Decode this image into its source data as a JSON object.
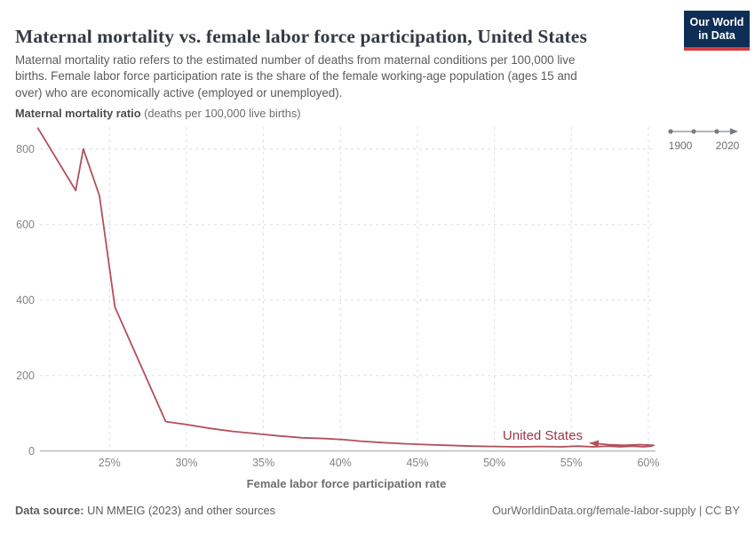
{
  "header": {
    "title": "Maternal mortality vs. female labor force participation, United States",
    "subtitle_lines": [
      "Maternal mortality ratio refers to the estimated number of deaths from maternal conditions per 100,000 live",
      "births. Female labor force participation rate is the share of the female working-age population (ages 15 and",
      "over) who are economically active (employed or unemployed)."
    ],
    "logo": {
      "line1": "Our World",
      "line2": "in Data",
      "bg": "#0f2e55",
      "accent": "#d63c41"
    }
  },
  "timeline": {
    "start_label": "1900",
    "end_label": "2020"
  },
  "chart_data": {
    "type": "line",
    "title": "Maternal mortality vs. female labor force participation, United States",
    "entity_label": "United States",
    "xlabel": "Female labor force participation rate",
    "ylabel_bold": "Maternal mortality ratio",
    "ylabel_unit": " (deaths per 100,000 live births)",
    "x_ticks": [
      25,
      30,
      35,
      40,
      45,
      50,
      55,
      60
    ],
    "x_tick_suffix": "%",
    "y_ticks": [
      0,
      200,
      400,
      600,
      800
    ],
    "xlim": [
      20.2,
      60.7
    ],
    "ylim": [
      0,
      860
    ],
    "grid": true,
    "legend_position": "inline-end-label",
    "line_color": "#b2505b",
    "label_color": "#9d3644",
    "end_arrow": true,
    "points": [
      [
        20.35,
        855
      ],
      [
        22.8,
        690
      ],
      [
        23.3,
        800
      ],
      [
        24.35,
        676
      ],
      [
        25.35,
        381
      ],
      [
        28.65,
        78
      ],
      [
        30.0,
        70
      ],
      [
        31.5,
        60
      ],
      [
        33.0,
        52
      ],
      [
        34.5,
        46
      ],
      [
        36.0,
        40
      ],
      [
        37.5,
        35
      ],
      [
        39.0,
        33
      ],
      [
        40.2,
        30
      ],
      [
        41.3,
        26
      ],
      [
        42.8,
        22
      ],
      [
        44.3,
        19
      ],
      [
        45.6,
        17
      ],
      [
        47.0,
        15
      ],
      [
        48.5,
        13
      ],
      [
        50.0,
        12
      ],
      [
        51.5,
        11
      ],
      [
        53.0,
        12
      ],
      [
        54.3,
        11
      ],
      [
        55.4,
        13
      ],
      [
        56.4,
        11
      ],
      [
        57.4,
        13
      ],
      [
        58.2,
        11
      ],
      [
        59.0,
        13
      ],
      [
        59.7,
        11
      ],
      [
        60.15,
        13
      ],
      [
        60.35,
        15
      ],
      [
        59.4,
        17
      ],
      [
        58.4,
        15
      ],
      [
        57.4,
        17
      ],
      [
        56.25,
        21
      ]
    ]
  },
  "footer": {
    "source_label": "Data source:",
    "source_text": " UN MMEIG (2023) and other sources",
    "right_text": "OurWorldinData.org/female-labor-supply | CC BY"
  }
}
